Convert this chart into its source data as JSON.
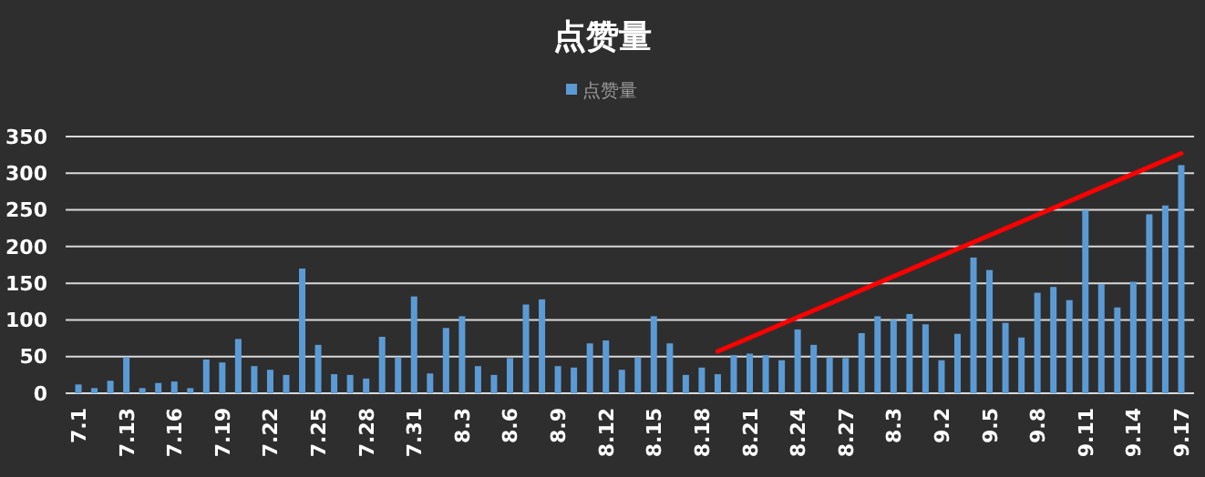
{
  "chart_data": {
    "type": "bar",
    "title": "点赞量",
    "categories": [
      "7.1",
      null,
      null,
      "7.13",
      null,
      null,
      "7.16",
      null,
      null,
      "7.19",
      null,
      null,
      "7.22",
      null,
      null,
      "7.25",
      null,
      null,
      "7.28",
      null,
      null,
      "7.31",
      null,
      null,
      "8.3",
      null,
      null,
      "8.6",
      null,
      null,
      "8.9",
      null,
      null,
      "8.12",
      null,
      null,
      "8.15",
      null,
      null,
      "8.18",
      null,
      null,
      "8.21",
      null,
      null,
      "8.24",
      null,
      null,
      "8.27",
      null,
      null,
      "8.3",
      null,
      null,
      "9.2",
      null,
      null,
      "9.5",
      null,
      null,
      "9.8",
      null,
      null,
      "9.11",
      null,
      null,
      "9.14",
      null,
      null,
      "9.17"
    ],
    "series": [
      {
        "name": "点赞量",
        "color": "#5b9bd5",
        "values": [
          12,
          7,
          17,
          49,
          7,
          14,
          16,
          7,
          46,
          42,
          74,
          37,
          32,
          25,
          170,
          66,
          26,
          25,
          20,
          77,
          49,
          132,
          27,
          89,
          105,
          37,
          25,
          48,
          121,
          128,
          37,
          35,
          68,
          72,
          32,
          49,
          105,
          68,
          25,
          35,
          26,
          52,
          54,
          52,
          45,
          87,
          66,
          49,
          48,
          82,
          105,
          100,
          108,
          94,
          45,
          81,
          185,
          168,
          96,
          76,
          137,
          145,
          127,
          250,
          149,
          117,
          152,
          244,
          256,
          311
        ]
      },
      {
        "type": "line",
        "color": "#ff0000",
        "values": [
          null,
          null,
          null,
          null,
          null,
          null,
          null,
          null,
          null,
          null,
          null,
          null,
          null,
          null,
          null,
          null,
          null,
          null,
          null,
          null,
          null,
          null,
          null,
          null,
          null,
          null,
          null,
          null,
          null,
          null,
          null,
          null,
          null,
          null,
          null,
          null,
          null,
          null,
          null,
          null,
          57,
          null,
          null,
          null,
          null,
          null,
          null,
          null,
          null,
          null,
          null,
          null,
          null,
          null,
          null,
          null,
          null,
          null,
          null,
          null,
          null,
          null,
          null,
          null,
          null,
          null,
          null,
          null,
          null,
          327
        ]
      }
    ],
    "ylim": [
      0,
      350
    ],
    "yticks": [
      0,
      50,
      100,
      150,
      200,
      250,
      300,
      350
    ],
    "grid": "y",
    "legend": "top"
  }
}
